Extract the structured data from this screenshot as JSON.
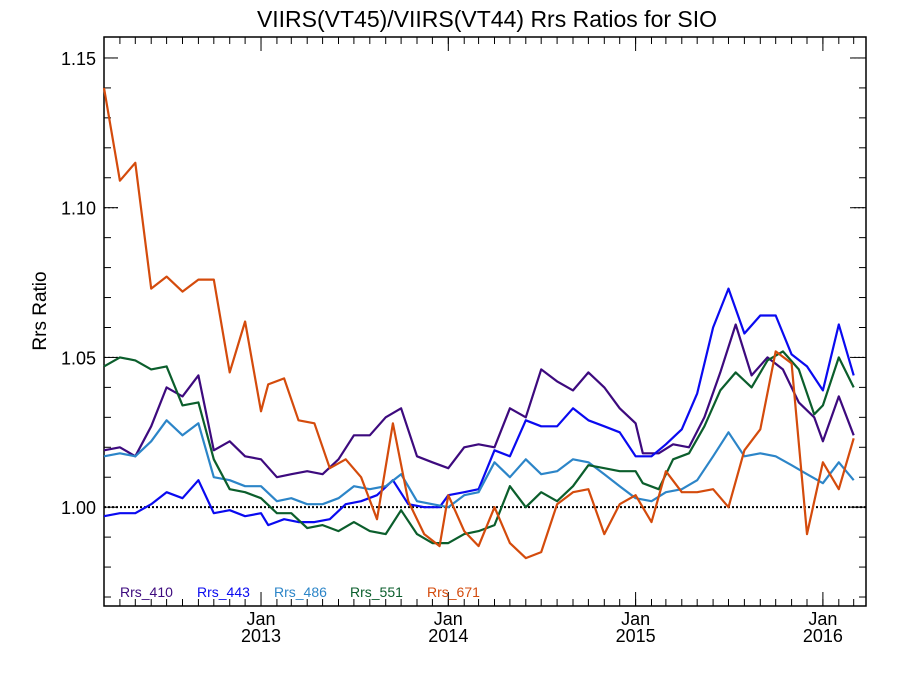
{
  "chart_data": {
    "type": "line",
    "title": "VIIRS(VT45)/VIIRS(VT44)  Rrs Ratios for SIO",
    "ylabel": "Rrs Ratio",
    "xlabel": "",
    "ylim": [
      0.967,
      1.157
    ],
    "xlim": [
      "2012-03-01",
      "2016-03-25"
    ],
    "yticks": [
      1.0,
      1.05,
      1.1,
      1.15
    ],
    "ytick_labels": [
      "1.00",
      "1.05",
      "1.10",
      "1.15"
    ],
    "xticks": [
      {
        "date": "2013-01-01",
        "month": "Jan",
        "year": "2013"
      },
      {
        "date": "2014-01-01",
        "month": "Jan",
        "year": "2014"
      },
      {
        "date": "2015-01-01",
        "month": "Jan",
        "year": "2015"
      },
      {
        "date": "2016-01-01",
        "month": "Jan",
        "year": "2016"
      }
    ],
    "reference_line": 1.0,
    "legend_position": "bottom-left",
    "series": [
      {
        "name": "Rrs_410",
        "color": "#3d0a7e",
        "points": [
          [
            "2012-03-01",
            1.019
          ],
          [
            "2012-04-01",
            1.02
          ],
          [
            "2012-05-01",
            1.017
          ],
          [
            "2012-06-01",
            1.027
          ],
          [
            "2012-07-01",
            1.04
          ],
          [
            "2012-08-01",
            1.037
          ],
          [
            "2012-09-01",
            1.044
          ],
          [
            "2012-10-01",
            1.019
          ],
          [
            "2012-11-01",
            1.022
          ],
          [
            "2012-12-01",
            1.017
          ],
          [
            "2013-01-01",
            1.016
          ],
          [
            "2013-02-01",
            1.01
          ],
          [
            "2013-03-01",
            1.011
          ],
          [
            "2013-04-01",
            1.012
          ],
          [
            "2013-05-01",
            1.011
          ],
          [
            "2013-06-01",
            1.016
          ],
          [
            "2013-07-01",
            1.024
          ],
          [
            "2013-08-01",
            1.024
          ],
          [
            "2013-09-01",
            1.03
          ],
          [
            "2013-10-01",
            1.033
          ],
          [
            "2013-11-01",
            1.017
          ],
          [
            "2013-12-01",
            1.015
          ],
          [
            "2014-01-01",
            1.013
          ],
          [
            "2014-02-01",
            1.02
          ],
          [
            "2014-03-01",
            1.021
          ],
          [
            "2014-04-01",
            1.02
          ],
          [
            "2014-05-01",
            1.033
          ],
          [
            "2014-06-01",
            1.03
          ],
          [
            "2014-07-01",
            1.046
          ],
          [
            "2014-08-01",
            1.042
          ],
          [
            "2014-09-01",
            1.039
          ],
          [
            "2014-10-01",
            1.045
          ],
          [
            "2014-11-01",
            1.04
          ],
          [
            "2014-12-01",
            1.033
          ],
          [
            "2015-01-01",
            1.028
          ],
          [
            "2015-01-15",
            1.018
          ],
          [
            "2015-02-15",
            1.018
          ],
          [
            "2015-03-15",
            1.021
          ],
          [
            "2015-04-15",
            1.02
          ],
          [
            "2015-05-15",
            1.03
          ],
          [
            "2015-06-15",
            1.045
          ],
          [
            "2015-07-15",
            1.061
          ],
          [
            "2015-08-15",
            1.044
          ],
          [
            "2015-09-15",
            1.05
          ],
          [
            "2015-10-15",
            1.046
          ],
          [
            "2015-11-15",
            1.035
          ],
          [
            "2015-12-15",
            1.03
          ],
          [
            "2016-01-01",
            1.022
          ],
          [
            "2016-02-01",
            1.037
          ],
          [
            "2016-03-01",
            1.024
          ]
        ]
      },
      {
        "name": "Rrs_443",
        "color": "#0a0af0",
        "points": [
          [
            "2012-03-01",
            0.997
          ],
          [
            "2012-04-01",
            0.998
          ],
          [
            "2012-05-01",
            0.998
          ],
          [
            "2012-06-01",
            1.001
          ],
          [
            "2012-07-01",
            1.005
          ],
          [
            "2012-08-01",
            1.003
          ],
          [
            "2012-09-01",
            1.009
          ],
          [
            "2012-10-01",
            0.998
          ],
          [
            "2012-11-01",
            0.999
          ],
          [
            "2012-12-01",
            0.997
          ],
          [
            "2013-01-01",
            0.998
          ],
          [
            "2013-01-15",
            0.994
          ],
          [
            "2013-02-15",
            0.996
          ],
          [
            "2013-03-15",
            0.995
          ],
          [
            "2013-04-15",
            0.995
          ],
          [
            "2013-05-15",
            0.996
          ],
          [
            "2013-06-15",
            1.001
          ],
          [
            "2013-07-15",
            1.002
          ],
          [
            "2013-08-15",
            1.004
          ],
          [
            "2013-09-15",
            1.009
          ],
          [
            "2013-10-15",
            1.001
          ],
          [
            "2013-11-15",
            1.0
          ],
          [
            "2013-12-15",
            1.0
          ],
          [
            "2014-01-01",
            1.004
          ],
          [
            "2014-02-01",
            1.005
          ],
          [
            "2014-03-01",
            1.006
          ],
          [
            "2014-04-01",
            1.019
          ],
          [
            "2014-05-01",
            1.017
          ],
          [
            "2014-06-01",
            1.029
          ],
          [
            "2014-07-01",
            1.027
          ],
          [
            "2014-08-01",
            1.027
          ],
          [
            "2014-09-01",
            1.033
          ],
          [
            "2014-10-01",
            1.029
          ],
          [
            "2014-11-01",
            1.027
          ],
          [
            "2014-12-01",
            1.025
          ],
          [
            "2015-01-01",
            1.017
          ],
          [
            "2015-02-01",
            1.017
          ],
          [
            "2015-03-01",
            1.021
          ],
          [
            "2015-04-01",
            1.026
          ],
          [
            "2015-05-01",
            1.038
          ],
          [
            "2015-06-01",
            1.06
          ],
          [
            "2015-07-01",
            1.073
          ],
          [
            "2015-08-01",
            1.058
          ],
          [
            "2015-09-01",
            1.064
          ],
          [
            "2015-10-01",
            1.064
          ],
          [
            "2015-11-01",
            1.051
          ],
          [
            "2015-12-01",
            1.047
          ],
          [
            "2016-01-01",
            1.039
          ],
          [
            "2016-02-01",
            1.061
          ],
          [
            "2016-03-01",
            1.044
          ]
        ]
      },
      {
        "name": "Rrs_486",
        "color": "#2c85c8",
        "points": [
          [
            "2012-03-01",
            1.017
          ],
          [
            "2012-04-01",
            1.018
          ],
          [
            "2012-05-01",
            1.017
          ],
          [
            "2012-06-01",
            1.022
          ],
          [
            "2012-07-01",
            1.029
          ],
          [
            "2012-08-01",
            1.024
          ],
          [
            "2012-09-01",
            1.028
          ],
          [
            "2012-10-01",
            1.01
          ],
          [
            "2012-11-01",
            1.009
          ],
          [
            "2012-12-01",
            1.007
          ],
          [
            "2013-01-01",
            1.007
          ],
          [
            "2013-02-01",
            1.002
          ],
          [
            "2013-03-01",
            1.003
          ],
          [
            "2013-04-01",
            1.001
          ],
          [
            "2013-05-01",
            1.001
          ],
          [
            "2013-06-01",
            1.003
          ],
          [
            "2013-07-01",
            1.007
          ],
          [
            "2013-08-01",
            1.006
          ],
          [
            "2013-09-01",
            1.007
          ],
          [
            "2013-10-01",
            1.011
          ],
          [
            "2013-11-01",
            1.002
          ],
          [
            "2013-12-01",
            1.001
          ],
          [
            "2014-01-01",
            1.0
          ],
          [
            "2014-02-01",
            1.004
          ],
          [
            "2014-03-01",
            1.005
          ],
          [
            "2014-04-01",
            1.015
          ],
          [
            "2014-05-01",
            1.01
          ],
          [
            "2014-06-01",
            1.016
          ],
          [
            "2014-07-01",
            1.011
          ],
          [
            "2014-08-01",
            1.012
          ],
          [
            "2014-09-01",
            1.016
          ],
          [
            "2014-10-01",
            1.015
          ],
          [
            "2014-11-01",
            1.011
          ],
          [
            "2014-12-01",
            1.007
          ],
          [
            "2015-01-01",
            1.003
          ],
          [
            "2015-02-01",
            1.002
          ],
          [
            "2015-03-01",
            1.005
          ],
          [
            "2015-04-01",
            1.006
          ],
          [
            "2015-05-01",
            1.009
          ],
          [
            "2015-06-01",
            1.017
          ],
          [
            "2015-07-01",
            1.025
          ],
          [
            "2015-08-01",
            1.017
          ],
          [
            "2015-09-01",
            1.018
          ],
          [
            "2015-10-01",
            1.017
          ],
          [
            "2015-11-01",
            1.014
          ],
          [
            "2015-12-01",
            1.011
          ],
          [
            "2016-01-01",
            1.008
          ],
          [
            "2016-02-01",
            1.015
          ],
          [
            "2016-03-01",
            1.009
          ]
        ]
      },
      {
        "name": "Rrs_551",
        "color": "#0b5e2c",
        "points": [
          [
            "2012-03-01",
            1.047
          ],
          [
            "2012-04-01",
            1.05
          ],
          [
            "2012-05-01",
            1.049
          ],
          [
            "2012-06-01",
            1.046
          ],
          [
            "2012-07-01",
            1.047
          ],
          [
            "2012-08-01",
            1.034
          ],
          [
            "2012-09-01",
            1.035
          ],
          [
            "2012-10-01",
            1.016
          ],
          [
            "2012-11-01",
            1.006
          ],
          [
            "2012-12-01",
            1.005
          ],
          [
            "2013-01-01",
            1.003
          ],
          [
            "2013-02-01",
            0.998
          ],
          [
            "2013-03-01",
            0.998
          ],
          [
            "2013-04-01",
            0.993
          ],
          [
            "2013-05-01",
            0.994
          ],
          [
            "2013-06-01",
            0.992
          ],
          [
            "2013-07-01",
            0.995
          ],
          [
            "2013-08-01",
            0.992
          ],
          [
            "2013-09-01",
            0.991
          ],
          [
            "2013-10-01",
            0.999
          ],
          [
            "2013-11-01",
            0.991
          ],
          [
            "2013-12-01",
            0.988
          ],
          [
            "2014-01-01",
            0.988
          ],
          [
            "2014-02-01",
            0.991
          ],
          [
            "2014-03-01",
            0.992
          ],
          [
            "2014-04-01",
            0.994
          ],
          [
            "2014-05-01",
            1.007
          ],
          [
            "2014-06-01",
            1.0
          ],
          [
            "2014-07-01",
            1.005
          ],
          [
            "2014-08-01",
            1.002
          ],
          [
            "2014-09-01",
            1.007
          ],
          [
            "2014-10-01",
            1.014
          ],
          [
            "2014-11-01",
            1.013
          ],
          [
            "2014-12-01",
            1.012
          ],
          [
            "2015-01-01",
            1.012
          ],
          [
            "2015-01-15",
            1.008
          ],
          [
            "2015-02-15",
            1.006
          ],
          [
            "2015-03-15",
            1.016
          ],
          [
            "2015-04-15",
            1.018
          ],
          [
            "2015-05-15",
            1.027
          ],
          [
            "2015-06-15",
            1.039
          ],
          [
            "2015-07-15",
            1.045
          ],
          [
            "2015-08-15",
            1.04
          ],
          [
            "2015-09-15",
            1.049
          ],
          [
            "2015-10-15",
            1.052
          ],
          [
            "2015-11-15",
            1.046
          ],
          [
            "2015-12-15",
            1.031
          ],
          [
            "2016-01-01",
            1.034
          ],
          [
            "2016-02-01",
            1.05
          ],
          [
            "2016-03-01",
            1.04
          ]
        ]
      },
      {
        "name": "Rrs_671",
        "color": "#d44b0c",
        "points": [
          [
            "2012-03-01",
            1.14
          ],
          [
            "2012-04-01",
            1.109
          ],
          [
            "2012-05-01",
            1.115
          ],
          [
            "2012-06-01",
            1.073
          ],
          [
            "2012-07-01",
            1.077
          ],
          [
            "2012-08-01",
            1.072
          ],
          [
            "2012-09-01",
            1.076
          ],
          [
            "2012-10-01",
            1.076
          ],
          [
            "2012-11-01",
            1.045
          ],
          [
            "2012-12-01",
            1.062
          ],
          [
            "2013-01-01",
            1.032
          ],
          [
            "2013-01-15",
            1.041
          ],
          [
            "2013-02-15",
            1.043
          ],
          [
            "2013-03-15",
            1.029
          ],
          [
            "2013-04-15",
            1.028
          ],
          [
            "2013-05-15",
            1.013
          ],
          [
            "2013-06-15",
            1.016
          ],
          [
            "2013-07-15",
            1.01
          ],
          [
            "2013-08-15",
            0.996
          ],
          [
            "2013-09-15",
            1.028
          ],
          [
            "2013-10-15",
            1.002
          ],
          [
            "2013-11-15",
            0.991
          ],
          [
            "2013-12-15",
            0.987
          ],
          [
            "2014-01-01",
            1.004
          ],
          [
            "2014-02-01",
            0.992
          ],
          [
            "2014-03-01",
            0.987
          ],
          [
            "2014-04-01",
            1.0
          ],
          [
            "2014-05-01",
            0.988
          ],
          [
            "2014-06-01",
            0.983
          ],
          [
            "2014-07-01",
            0.985
          ],
          [
            "2014-08-01",
            1.001
          ],
          [
            "2014-09-01",
            1.005
          ],
          [
            "2014-10-01",
            1.006
          ],
          [
            "2014-11-01",
            0.991
          ],
          [
            "2014-12-01",
            1.001
          ],
          [
            "2015-01-01",
            1.004
          ],
          [
            "2015-02-01",
            0.995
          ],
          [
            "2015-03-01",
            1.012
          ],
          [
            "2015-04-01",
            1.005
          ],
          [
            "2015-05-01",
            1.005
          ],
          [
            "2015-06-01",
            1.006
          ],
          [
            "2015-07-01",
            1.0
          ],
          [
            "2015-08-01",
            1.019
          ],
          [
            "2015-09-01",
            1.026
          ],
          [
            "2015-10-01",
            1.052
          ],
          [
            "2015-11-01",
            1.048
          ],
          [
            "2015-12-01",
            0.991
          ],
          [
            "2016-01-01",
            1.015
          ],
          [
            "2016-02-01",
            1.006
          ],
          [
            "2016-03-01",
            1.023
          ]
        ]
      }
    ]
  }
}
